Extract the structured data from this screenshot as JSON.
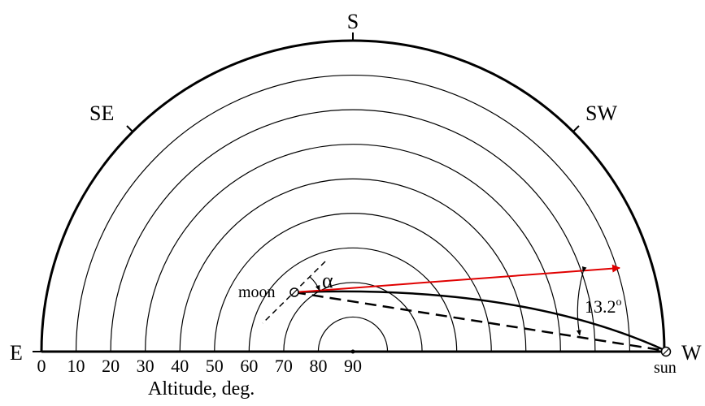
{
  "directions": {
    "south": "S",
    "southeast": "SE",
    "southwest": "SW",
    "east": "E",
    "west": "W"
  },
  "altitude_axis": {
    "label": "Altitude, deg.",
    "ticks": [
      "0",
      "10",
      "20",
      "30",
      "40",
      "50",
      "60",
      "70",
      "80",
      "90"
    ],
    "altitude_circles_deg": [
      0,
      10,
      20,
      30,
      40,
      50,
      60,
      70,
      80
    ]
  },
  "bodies": {
    "moon_label": "moon",
    "sun_label": "sun",
    "moon_altitude_deg": 70,
    "sun_altitude_deg": 0
  },
  "annotations": {
    "alpha_label": "α",
    "angle_value": "13.2",
    "angle_unit": "o"
  },
  "colors": {
    "line": "#000000",
    "arrow": "#e00000"
  }
}
